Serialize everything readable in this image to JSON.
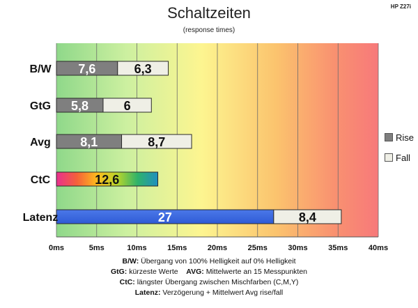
{
  "header": {
    "title": "Schaltzeiten",
    "subtitle": "(response times)",
    "brand": "HP Z27i"
  },
  "legend": {
    "items": [
      {
        "label": "Rise",
        "color": "#7f7f7f"
      },
      {
        "label": "Fall",
        "color": "#efefe6"
      }
    ]
  },
  "footnotes": [
    {
      "key": "B/W:",
      "text": " Übergang von 100% Helligkeit auf 0% Helligkeit"
    },
    {
      "key": "GtG:",
      "text": " kürzeste  Werte",
      "key2": "AVG:",
      "text2": " Mittelwerte  an 15 Messpunkten"
    },
    {
      "key": "CtC:",
      "text": " längster Übergang zwischen Mischfarben (C,M,Y)"
    },
    {
      "key": "Latenz:",
      "text": " Verzögerung  + Mittelwert Avg rise/fall"
    }
  ],
  "chart_data": {
    "type": "bar",
    "orientation": "horizontal",
    "stacked": true,
    "categories": [
      "B/W",
      "GtG",
      "Avg",
      "CtC",
      "Latenz"
    ],
    "series": [
      {
        "name": "Rise",
        "values": [
          7.6,
          5.8,
          8.1,
          12.6,
          27
        ],
        "labels": [
          "7,6",
          "5,8",
          "8,1",
          "12,6",
          "27"
        ]
      },
      {
        "name": "Fall",
        "values": [
          6.3,
          6,
          8.7,
          null,
          8.4
        ],
        "labels": [
          "6,3",
          "6",
          "8,7",
          "",
          "8,4"
        ]
      }
    ],
    "segment_styles": [
      [
        "gray",
        "gray",
        "gray",
        "rainbow",
        "blue"
      ],
      [
        "light",
        "light",
        "light",
        null,
        "light"
      ]
    ],
    "xlim": [
      0,
      40
    ],
    "xticks": [
      0,
      5,
      10,
      15,
      20,
      25,
      30,
      35,
      40
    ],
    "xtick_labels": [
      "0ms",
      "5ms",
      "10ms",
      "15ms",
      "20ms",
      "25ms",
      "30ms",
      "35ms",
      "40ms"
    ],
    "background": "gradient green-yellow-orange-red",
    "grid": true,
    "legend_position": "right"
  }
}
